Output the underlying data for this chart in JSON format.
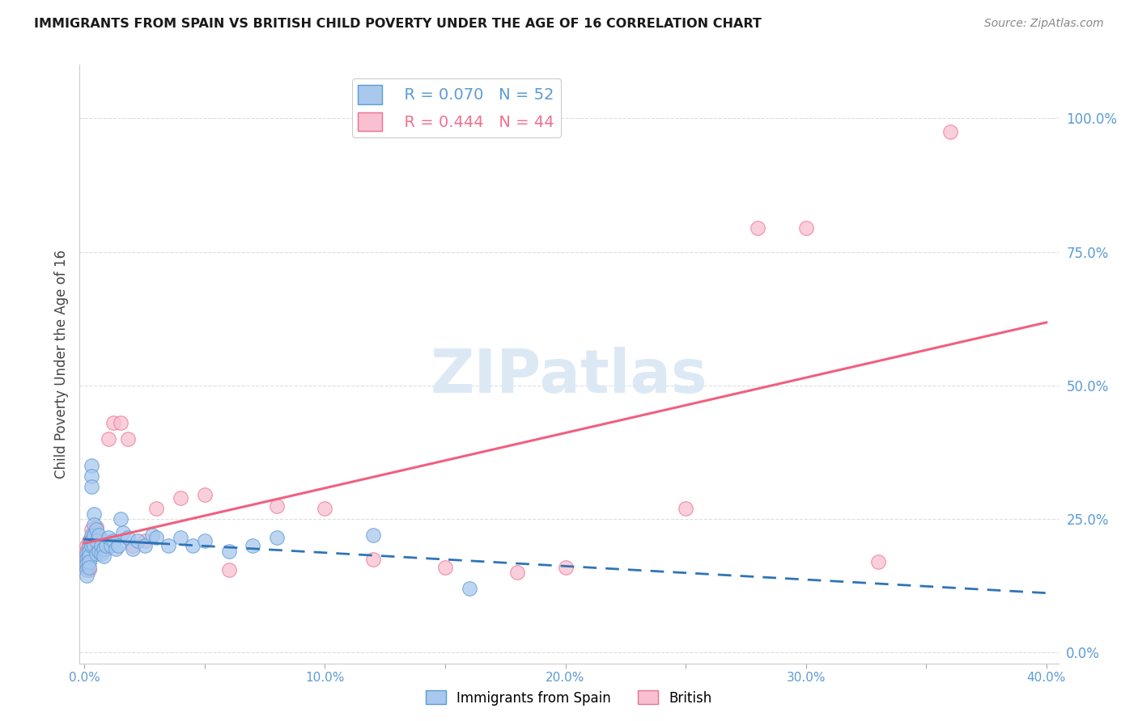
{
  "title": "IMMIGRANTS FROM SPAIN VS BRITISH CHILD POVERTY UNDER THE AGE OF 16 CORRELATION CHART",
  "source": "Source: ZipAtlas.com",
  "ylabel": "Child Poverty Under the Age of 16",
  "r_spain": 0.07,
  "n_spain": 52,
  "r_british": 0.444,
  "n_british": 44,
  "xlim": [
    -0.002,
    0.405
  ],
  "ylim": [
    -0.02,
    1.1
  ],
  "xticks": [
    0.0,
    0.05,
    0.1,
    0.15,
    0.2,
    0.25,
    0.3,
    0.35,
    0.4
  ],
  "xticklabels": [
    "0.0%",
    "",
    "10.0%",
    "",
    "20.0%",
    "",
    "30.0%",
    "",
    "40.0%"
  ],
  "yticks_right": [
    0.0,
    0.25,
    0.5,
    0.75,
    1.0
  ],
  "yticklabels_right": [
    "0.0%",
    "25.0%",
    "50.0%",
    "75.0%",
    "100.0%"
  ],
  "color_spain_fill": "#A8C8EE",
  "color_spain_edge": "#5B9BD5",
  "color_british_fill": "#F8C0D0",
  "color_british_edge": "#F07090",
  "trendline_spain_solid_color": "#2E75B6",
  "trendline_spain_dash_color": "#7EB4E2",
  "trendline_british_color": "#F06080",
  "grid_color": "#DDDDDD",
  "watermark_color": "#DCE9F5",
  "tick_label_color": "#5B9BD5",
  "axis_label_color": "#444444",
  "background_color": "#FFFFFF",
  "spain_x": [
    0.001,
    0.001,
    0.001,
    0.001,
    0.001,
    0.002,
    0.002,
    0.002,
    0.002,
    0.002,
    0.003,
    0.003,
    0.003,
    0.003,
    0.003,
    0.003,
    0.004,
    0.004,
    0.004,
    0.004,
    0.005,
    0.005,
    0.005,
    0.006,
    0.006,
    0.007,
    0.007,
    0.008,
    0.008,
    0.009,
    0.01,
    0.011,
    0.012,
    0.013,
    0.014,
    0.015,
    0.016,
    0.018,
    0.02,
    0.022,
    0.025,
    0.028,
    0.03,
    0.035,
    0.04,
    0.045,
    0.05,
    0.06,
    0.07,
    0.08,
    0.12,
    0.16
  ],
  "spain_y": [
    0.185,
    0.175,
    0.165,
    0.155,
    0.145,
    0.2,
    0.19,
    0.18,
    0.17,
    0.16,
    0.35,
    0.33,
    0.31,
    0.22,
    0.21,
    0.2,
    0.26,
    0.24,
    0.22,
    0.2,
    0.23,
    0.21,
    0.185,
    0.22,
    0.19,
    0.2,
    0.185,
    0.195,
    0.18,
    0.2,
    0.215,
    0.2,
    0.21,
    0.195,
    0.2,
    0.25,
    0.225,
    0.215,
    0.195,
    0.21,
    0.2,
    0.22,
    0.215,
    0.2,
    0.215,
    0.2,
    0.21,
    0.19,
    0.2,
    0.215,
    0.22,
    0.12
  ],
  "british_x": [
    0.001,
    0.001,
    0.001,
    0.001,
    0.001,
    0.002,
    0.002,
    0.002,
    0.002,
    0.002,
    0.003,
    0.003,
    0.003,
    0.003,
    0.004,
    0.004,
    0.005,
    0.005,
    0.006,
    0.006,
    0.007,
    0.008,
    0.009,
    0.01,
    0.012,
    0.015,
    0.018,
    0.02,
    0.025,
    0.03,
    0.04,
    0.05,
    0.06,
    0.08,
    0.1,
    0.12,
    0.15,
    0.18,
    0.2,
    0.25,
    0.28,
    0.3,
    0.33,
    0.36
  ],
  "british_y": [
    0.2,
    0.19,
    0.18,
    0.17,
    0.16,
    0.21,
    0.2,
    0.185,
    0.17,
    0.155,
    0.23,
    0.215,
    0.2,
    0.185,
    0.22,
    0.2,
    0.235,
    0.21,
    0.215,
    0.195,
    0.2,
    0.21,
    0.195,
    0.4,
    0.43,
    0.43,
    0.4,
    0.2,
    0.21,
    0.27,
    0.29,
    0.295,
    0.155,
    0.275,
    0.27,
    0.175,
    0.16,
    0.15,
    0.16,
    0.27,
    0.795,
    0.795,
    0.17,
    0.975
  ],
  "figsize": [
    14.06,
    8.92
  ],
  "dpi": 100
}
